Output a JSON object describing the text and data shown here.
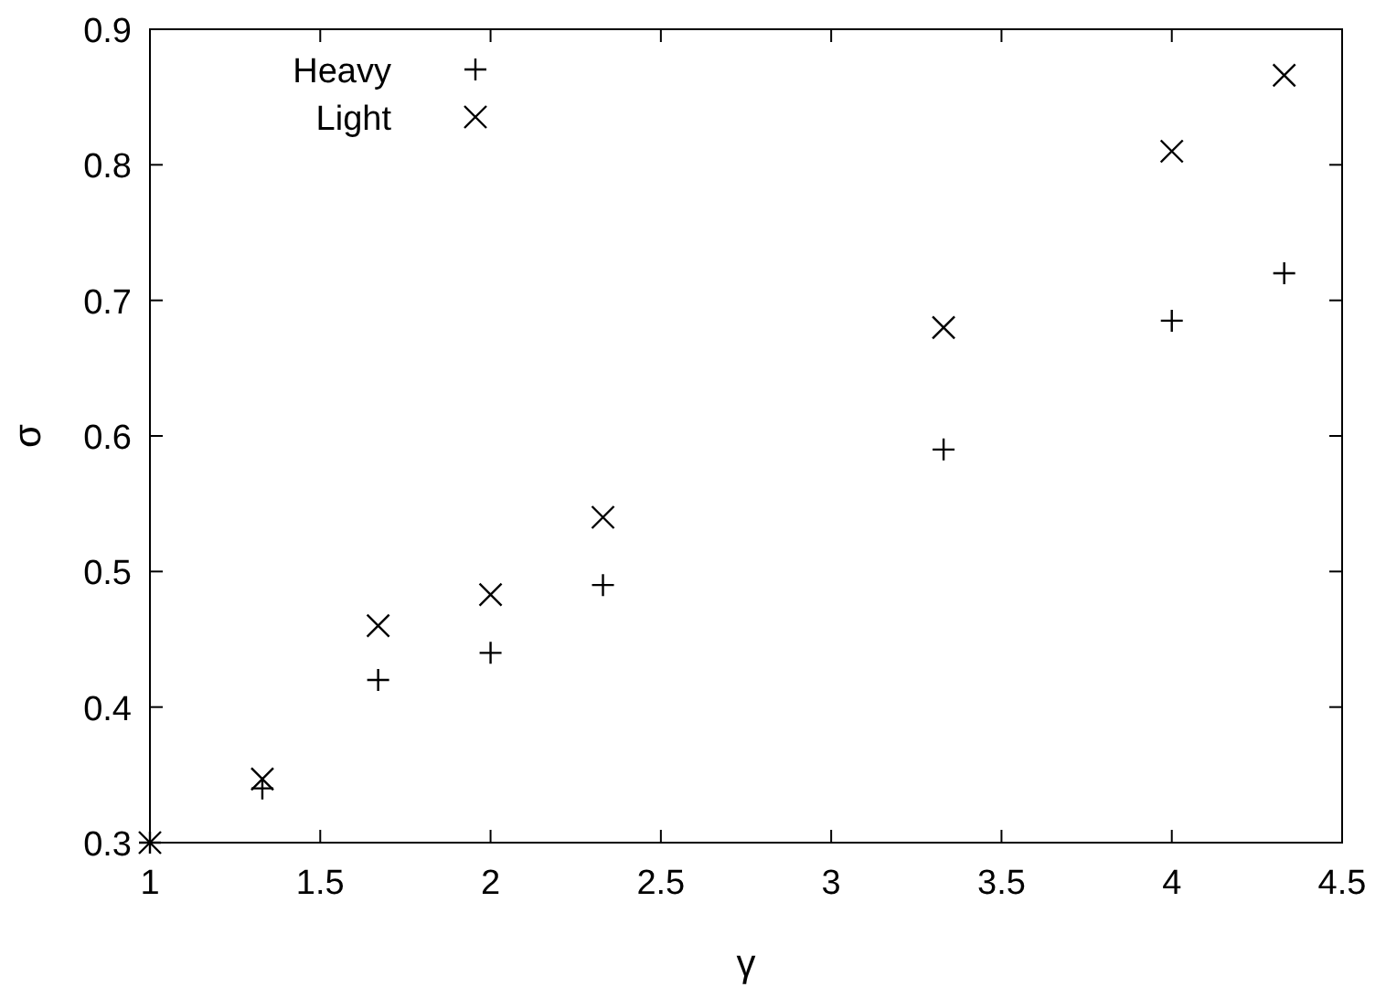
{
  "chart_data": {
    "type": "scatter",
    "xlabel": "γ",
    "ylabel": "σ",
    "x": [
      1,
      1.33,
      1.67,
      2,
      2.33,
      3.33,
      4,
      4.33
    ],
    "series": [
      {
        "name": "Heavy",
        "color": "#000000",
        "marker": "cross",
        "values": [
          0.3,
          0.34,
          0.42,
          0.44,
          0.49,
          0.59,
          0.685,
          0.72
        ]
      },
      {
        "name": "Light",
        "color": "#000000",
        "marker": "x",
        "values": [
          0.3,
          0.347,
          0.46,
          0.483,
          0.54,
          0.68,
          0.81,
          0.866
        ]
      }
    ],
    "xlim": [
      1,
      4.5
    ],
    "xticks": [
      1,
      {
        "value": 1.5,
        "label": "1.5"
      },
      2,
      {
        "value": 2.5,
        "label": "2.5"
      },
      3,
      {
        "value": 3.5,
        "label": "3.5"
      },
      4,
      {
        "value": 4.5,
        "label": "4.5"
      }
    ],
    "ylim": [
      0.3,
      0.9
    ],
    "yticks": [
      0.3,
      0.4,
      0.5,
      0.6,
      0.7,
      0.8,
      0.9
    ],
    "grid": false,
    "legend": "top left"
  }
}
